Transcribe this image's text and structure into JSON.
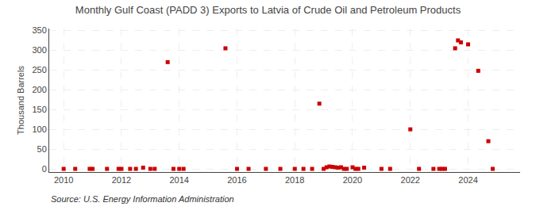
{
  "chart_data": {
    "type": "scatter",
    "title": "Monthly Gulf Coast (PADD 3) Exports to Latvia of Crude Oil and Petroleum Products",
    "ylabel": "Thousand Barrels",
    "annotations": [
      "Source: U.S. Energy Information Administration"
    ],
    "color": "#cc0000",
    "marker": "square",
    "grid": true,
    "xlim": [
      2009.5,
      2025.8
    ],
    "ylim": [
      -8,
      355
    ],
    "xticks": [
      2010,
      2012,
      2014,
      2016,
      2018,
      2020,
      2022,
      2024
    ],
    "yticks": [
      0,
      50,
      100,
      150,
      200,
      250,
      300,
      350
    ],
    "x": [
      2010.0,
      2010.4,
      2010.9,
      2011.0,
      2011.5,
      2011.9,
      2012.0,
      2012.3,
      2012.5,
      2012.75,
      2013.0,
      2013.15,
      2013.6,
      2013.8,
      2014.0,
      2014.15,
      2015.6,
      2016.0,
      2016.4,
      2017.0,
      2017.5,
      2018.0,
      2018.3,
      2018.6,
      2018.85,
      2019.0,
      2019.1,
      2019.2,
      2019.3,
      2019.4,
      2019.5,
      2019.6,
      2019.7,
      2019.8,
      2020.0,
      2020.1,
      2020.2,
      2020.4,
      2021.0,
      2021.3,
      2022.0,
      2022.3,
      2022.8,
      2023.0,
      2023.1,
      2023.2,
      2023.55,
      2023.65,
      2023.75,
      2024.0,
      2024.35,
      2024.7,
      2024.85
    ],
    "values": [
      0,
      0,
      0,
      0,
      0,
      0,
      0,
      0,
      0,
      3,
      0,
      0,
      270,
      0,
      0,
      0,
      305,
      0,
      0,
      0,
      0,
      0,
      0,
      0,
      165,
      0,
      4,
      6,
      5,
      4,
      3,
      4,
      0,
      0,
      4,
      0,
      0,
      3,
      0,
      0,
      100,
      0,
      0,
      0,
      0,
      0,
      305,
      325,
      320,
      315,
      248,
      70,
      0
    ]
  }
}
